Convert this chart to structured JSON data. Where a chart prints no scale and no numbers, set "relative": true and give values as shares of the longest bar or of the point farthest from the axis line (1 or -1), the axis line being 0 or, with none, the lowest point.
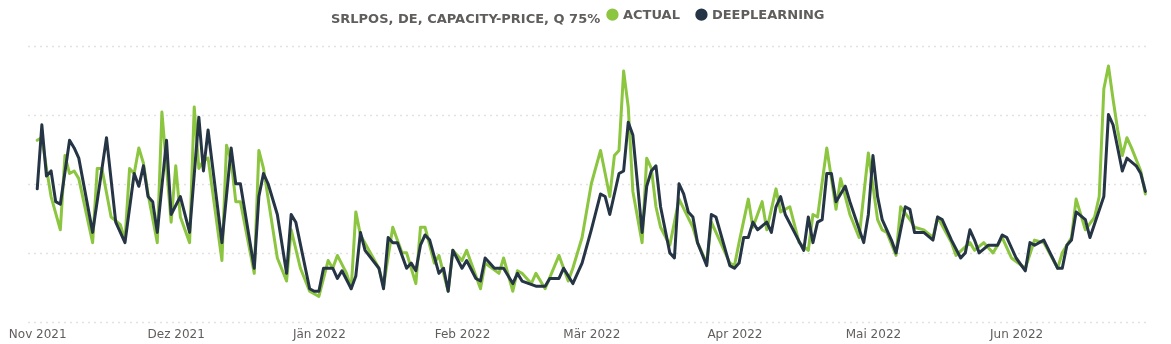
{
  "chart_data": {
    "type": "line",
    "legend_title": "SRLPOS, DE, CAPACITY-PRICE, Q 75%",
    "legend": "top",
    "relative": true,
    "grid": "y",
    "line_style": "solid",
    "marker": "none",
    "xlim": [
      "2021-10-30",
      "2022-06-30"
    ],
    "xticks": [
      {
        "value": "2021-11-01",
        "label": "Nov 2021"
      },
      {
        "value": "2021-12-01",
        "label": "Dez 2021"
      },
      {
        "value": "2022-01-01",
        "label": "Jän 2022"
      },
      {
        "value": "2022-02-01",
        "label": "Feb 2022"
      },
      {
        "value": "2022-03-01",
        "label": "Mär 2022"
      },
      {
        "value": "2022-04-01",
        "label": "Apr 2022"
      },
      {
        "value": "2022-05-01",
        "label": "Mai 2022"
      },
      {
        "value": "2022-06-01",
        "label": "Jun 2022"
      }
    ],
    "series": [
      {
        "name": "ACTUAL",
        "color": "#8cc540",
        "x": [
          "2021-11-01",
          "2021-11-02",
          "2021-11-03",
          "2021-11-04",
          "2021-11-06",
          "2021-11-07",
          "2021-11-08",
          "2021-11-09",
          "2021-11-10",
          "2021-11-13",
          "2021-11-14",
          "2021-11-15",
          "2021-11-17",
          "2021-11-19",
          "2021-11-20",
          "2021-11-21",
          "2021-11-22",
          "2021-11-23",
          "2021-11-24",
          "2021-11-25",
          "2021-11-27",
          "2021-11-28",
          "2021-11-30",
          "2021-12-01",
          "2021-12-02",
          "2021-12-04",
          "2021-12-05",
          "2021-12-06",
          "2021-12-07",
          "2021-12-08",
          "2021-12-11",
          "2021-12-12",
          "2021-12-13",
          "2021-12-14",
          "2021-12-15",
          "2021-12-18",
          "2021-12-19",
          "2021-12-20",
          "2021-12-23",
          "2021-12-25",
          "2021-12-26",
          "2021-12-28",
          "2021-12-30",
          "2022-01-01",
          "2022-01-03",
          "2022-01-04",
          "2022-01-05",
          "2022-01-07",
          "2022-01-08",
          "2022-01-09",
          "2022-01-10",
          "2022-01-14",
          "2022-01-15",
          "2022-01-17",
          "2022-01-19",
          "2022-01-20",
          "2022-01-22",
          "2022-01-23",
          "2022-01-24",
          "2022-01-26",
          "2022-01-27",
          "2022-01-29",
          "2022-01-30",
          "2022-02-01",
          "2022-02-02",
          "2022-02-05",
          "2022-02-06",
          "2022-02-09",
          "2022-02-10",
          "2022-02-12",
          "2022-02-13",
          "2022-02-14",
          "2022-02-16",
          "2022-02-17",
          "2022-02-19",
          "2022-02-22",
          "2022-02-24",
          "2022-02-25",
          "2022-02-27",
          "2022-03-01",
          "2022-03-03",
          "2022-03-05",
          "2022-03-06",
          "2022-03-07",
          "2022-03-08",
          "2022-03-09",
          "2022-03-10",
          "2022-03-12",
          "2022-03-13",
          "2022-03-14",
          "2022-03-15",
          "2022-03-16",
          "2022-03-18",
          "2022-03-20",
          "2022-03-23",
          "2022-03-24",
          "2022-03-26",
          "2022-03-27",
          "2022-03-31",
          "2022-04-01",
          "2022-04-02",
          "2022-04-04",
          "2022-04-05",
          "2022-04-07",
          "2022-04-08",
          "2022-04-10",
          "2022-04-11",
          "2022-04-13",
          "2022-04-15",
          "2022-04-17",
          "2022-04-18",
          "2022-04-19",
          "2022-04-21",
          "2022-04-23",
          "2022-04-24",
          "2022-04-26",
          "2022-04-28",
          "2022-04-30",
          "2022-05-02",
          "2022-05-03",
          "2022-05-04",
          "2022-05-06",
          "2022-05-07",
          "2022-05-09",
          "2022-05-10",
          "2022-05-12",
          "2022-05-14",
          "2022-05-15",
          "2022-05-18",
          "2022-05-19",
          "2022-05-22",
          "2022-05-23",
          "2022-05-25",
          "2022-05-27",
          "2022-05-29",
          "2022-05-31",
          "2022-06-03",
          "2022-06-05",
          "2022-06-07",
          "2022-06-10",
          "2022-06-11",
          "2022-06-13",
          "2022-06-14",
          "2022-06-16",
          "2022-06-18",
          "2022-06-19",
          "2022-06-20",
          "2022-06-21",
          "2022-06-22",
          "2022-06-23",
          "2022-06-24",
          "2022-06-25",
          "2022-06-26",
          "2022-06-28",
          "2022-06-29"
        ],
        "values": [
          0.71,
          0.72,
          0.6,
          0.49,
          0.36,
          0.65,
          0.58,
          0.59,
          0.56,
          0.31,
          0.6,
          0.6,
          0.41,
          0.38,
          0.32,
          0.6,
          0.58,
          0.68,
          0.62,
          0.5,
          0.31,
          0.82,
          0.39,
          0.61,
          0.41,
          0.31,
          0.84,
          0.6,
          0.63,
          0.64,
          0.24,
          0.69,
          0.63,
          0.47,
          0.47,
          0.19,
          0.67,
          0.6,
          0.25,
          0.16,
          0.36,
          0.21,
          0.12,
          0.1,
          0.24,
          0.21,
          0.26,
          0.19,
          0.13,
          0.43,
          0.34,
          0.21,
          0.14,
          0.37,
          0.27,
          0.27,
          0.15,
          0.37,
          0.37,
          0.23,
          0.26,
          0.12,
          0.28,
          0.24,
          0.28,
          0.13,
          0.23,
          0.19,
          0.25,
          0.12,
          0.2,
          0.19,
          0.15,
          0.19,
          0.13,
          0.26,
          0.16,
          0.21,
          0.33,
          0.54,
          0.67,
          0.49,
          0.65,
          0.67,
          0.98,
          0.84,
          0.51,
          0.31,
          0.64,
          0.6,
          0.45,
          0.37,
          0.3,
          0.48,
          0.37,
          0.31,
          0.23,
          0.39,
          0.23,
          0.22,
          0.31,
          0.48,
          0.37,
          0.47,
          0.36,
          0.52,
          0.43,
          0.45,
          0.31,
          0.28,
          0.42,
          0.41,
          0.68,
          0.44,
          0.56,
          0.42,
          0.33,
          0.66,
          0.4,
          0.36,
          0.35,
          0.26,
          0.45,
          0.4,
          0.37,
          0.36,
          0.33,
          0.41,
          0.31,
          0.26,
          0.31,
          0.28,
          0.31,
          0.27,
          0.33,
          0.25,
          0.21,
          0.32,
          0.31,
          0.21,
          0.27,
          0.33,
          0.48,
          0.36,
          0.41,
          0.49,
          0.91,
          1.0,
          0.87,
          0.75,
          0.65,
          0.72,
          0.68,
          0.59,
          0.5
        ]
      },
      {
        "name": "DEEPLEARNING",
        "color": "#253545",
        "x": [
          "2021-11-01",
          "2021-11-02",
          "2021-11-03",
          "2021-11-04",
          "2021-11-05",
          "2021-11-06",
          "2021-11-08",
          "2021-11-09",
          "2021-11-10",
          "2021-11-13",
          "2021-11-16",
          "2021-11-18",
          "2021-11-20",
          "2021-11-22",
          "2021-11-23",
          "2021-11-24",
          "2021-11-25",
          "2021-11-26",
          "2021-11-27",
          "2021-11-29",
          "2021-11-30",
          "2021-12-02",
          "2021-12-04",
          "2021-12-06",
          "2021-12-07",
          "2021-12-08",
          "2021-12-11",
          "2021-12-13",
          "2021-12-14",
          "2021-12-15",
          "2021-12-18",
          "2021-12-19",
          "2021-12-20",
          "2021-12-21",
          "2021-12-23",
          "2021-12-25",
          "2021-12-26",
          "2021-12-27",
          "2021-12-30",
          "2021-12-31",
          "2022-01-01",
          "2022-01-02",
          "2022-01-03",
          "2022-01-04",
          "2022-01-05",
          "2022-01-06",
          "2022-01-08",
          "2022-01-09",
          "2022-01-10",
          "2022-01-11",
          "2022-01-14",
          "2022-01-15",
          "2022-01-16",
          "2022-01-17",
          "2022-01-18",
          "2022-01-20",
          "2022-01-21",
          "2022-01-22",
          "2022-01-23",
          "2022-01-24",
          "2022-01-25",
          "2022-01-27",
          "2022-01-28",
          "2022-01-29",
          "2022-01-30",
          "2022-02-01",
          "2022-02-02",
          "2022-02-04",
          "2022-02-05",
          "2022-02-06",
          "2022-02-07",
          "2022-02-08",
          "2022-02-10",
          "2022-02-12",
          "2022-02-13",
          "2022-02-14",
          "2022-02-17",
          "2022-02-19",
          "2022-02-20",
          "2022-02-22",
          "2022-02-23",
          "2022-02-25",
          "2022-02-26",
          "2022-02-27",
          "2022-03-01",
          "2022-03-03",
          "2022-03-04",
          "2022-03-05",
          "2022-03-07",
          "2022-03-08",
          "2022-03-09",
          "2022-03-10",
          "2022-03-12",
          "2022-03-13",
          "2022-03-14",
          "2022-03-15",
          "2022-03-16",
          "2022-03-18",
          "2022-03-19",
          "2022-03-20",
          "2022-03-21",
          "2022-03-22",
          "2022-03-23",
          "2022-03-24",
          "2022-03-26",
          "2022-03-27",
          "2022-03-28",
          "2022-03-31",
          "2022-04-01",
          "2022-04-02",
          "2022-04-03",
          "2022-04-04",
          "2022-04-05",
          "2022-04-06",
          "2022-04-08",
          "2022-04-09",
          "2022-04-10",
          "2022-04-11",
          "2022-04-12",
          "2022-04-14",
          "2022-04-16",
          "2022-04-17",
          "2022-04-18",
          "2022-04-19",
          "2022-04-20",
          "2022-04-21",
          "2022-04-22",
          "2022-04-23",
          "2022-04-25",
          "2022-04-26",
          "2022-04-29",
          "2022-04-30",
          "2022-05-01",
          "2022-05-02",
          "2022-05-03",
          "2022-05-05",
          "2022-05-06",
          "2022-05-08",
          "2022-05-09",
          "2022-05-10",
          "2022-05-12",
          "2022-05-14",
          "2022-05-15",
          "2022-05-16",
          "2022-05-18",
          "2022-05-20",
          "2022-05-21",
          "2022-05-22",
          "2022-05-23",
          "2022-05-24",
          "2022-05-26",
          "2022-05-28",
          "2022-05-29",
          "2022-05-30",
          "2022-05-31",
          "2022-06-01",
          "2022-06-03",
          "2022-06-04",
          "2022-06-05",
          "2022-06-07",
          "2022-06-10",
          "2022-06-11",
          "2022-06-12",
          "2022-06-13",
          "2022-06-14",
          "2022-06-16",
          "2022-06-17",
          "2022-06-20",
          "2022-06-21",
          "2022-06-22",
          "2022-06-24",
          "2022-06-25",
          "2022-06-27",
          "2022-06-28",
          "2022-06-29"
        ],
        "values": [
          0.52,
          0.77,
          0.57,
          0.59,
          0.47,
          0.46,
          0.71,
          0.68,
          0.64,
          0.35,
          0.72,
          0.39,
          0.31,
          0.58,
          0.53,
          0.61,
          0.49,
          0.47,
          0.35,
          0.71,
          0.42,
          0.49,
          0.35,
          0.8,
          0.59,
          0.75,
          0.31,
          0.68,
          0.54,
          0.54,
          0.21,
          0.49,
          0.58,
          0.54,
          0.42,
          0.19,
          0.42,
          0.39,
          0.13,
          0.12,
          0.12,
          0.21,
          0.21,
          0.21,
          0.17,
          0.2,
          0.13,
          0.18,
          0.35,
          0.28,
          0.21,
          0.13,
          0.33,
          0.31,
          0.31,
          0.21,
          0.23,
          0.2,
          0.3,
          0.34,
          0.32,
          0.19,
          0.21,
          0.12,
          0.28,
          0.21,
          0.24,
          0.17,
          0.16,
          0.25,
          0.23,
          0.21,
          0.21,
          0.15,
          0.19,
          0.16,
          0.14,
          0.14,
          0.17,
          0.17,
          0.21,
          0.15,
          0.19,
          0.23,
          0.36,
          0.5,
          0.49,
          0.42,
          0.58,
          0.59,
          0.78,
          0.73,
          0.35,
          0.53,
          0.59,
          0.61,
          0.45,
          0.27,
          0.25,
          0.54,
          0.5,
          0.43,
          0.41,
          0.31,
          0.22,
          0.42,
          0.41,
          0.22,
          0.21,
          0.23,
          0.33,
          0.33,
          0.39,
          0.36,
          0.39,
          0.35,
          0.45,
          0.49,
          0.42,
          0.35,
          0.28,
          0.41,
          0.31,
          0.39,
          0.4,
          0.58,
          0.58,
          0.47,
          0.53,
          0.47,
          0.31,
          0.42,
          0.65,
          0.49,
          0.4,
          0.32,
          0.27,
          0.45,
          0.44,
          0.35,
          0.35,
          0.32,
          0.41,
          0.4,
          0.32,
          0.25,
          0.27,
          0.36,
          0.32,
          0.27,
          0.3,
          0.3,
          0.34,
          0.33,
          0.29,
          0.25,
          0.2,
          0.31,
          0.3,
          0.32,
          0.21,
          0.21,
          0.3,
          0.32,
          0.43,
          0.4,
          0.33,
          0.49,
          0.81,
          0.77,
          0.59,
          0.64,
          0.61,
          0.58,
          0.51
        ]
      }
    ]
  }
}
